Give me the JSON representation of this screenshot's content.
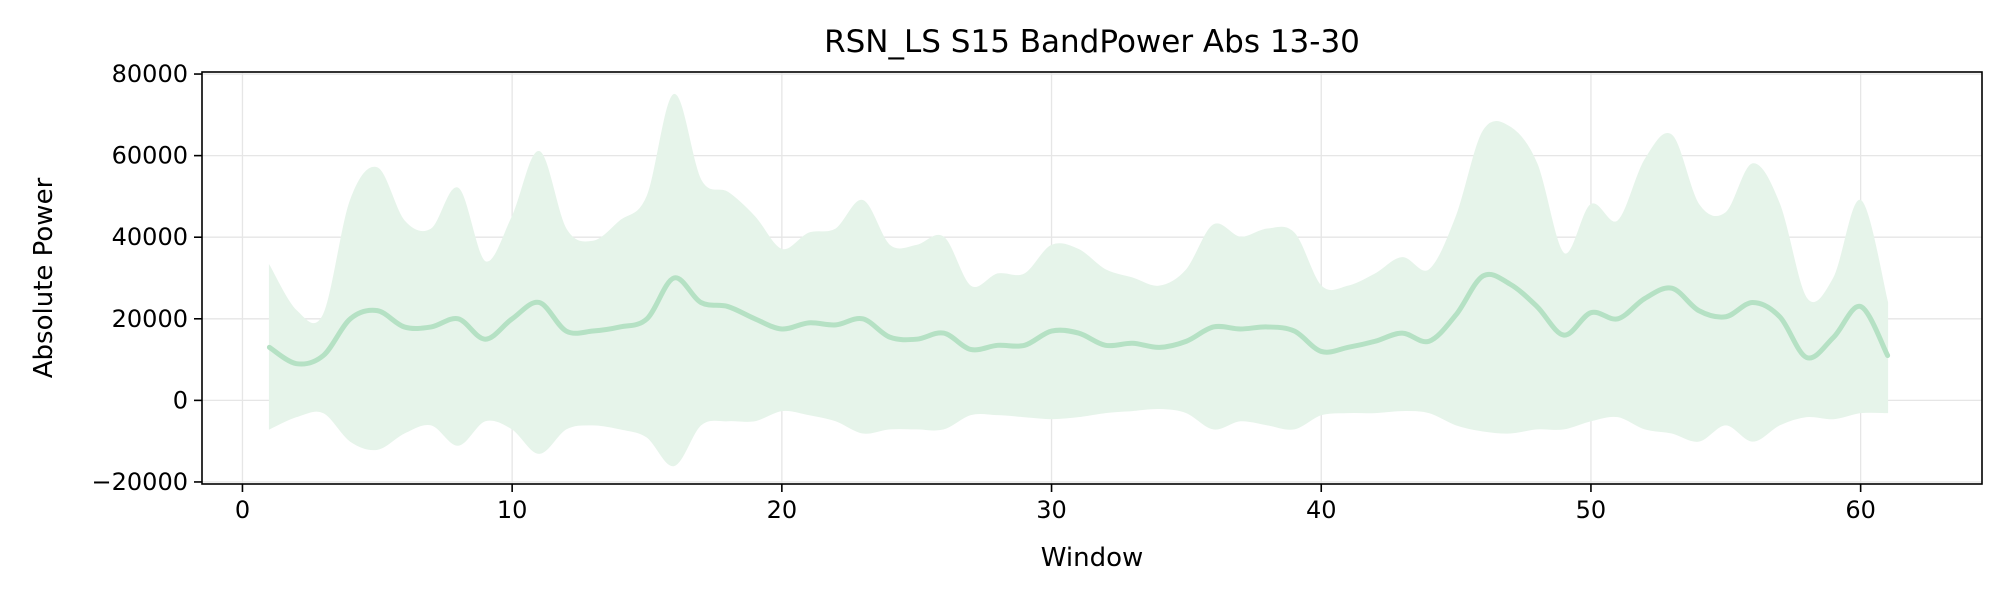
{
  "chart_data": {
    "type": "area",
    "title": "RSN_LS S15 BandPower Abs 13-30",
    "xlabel": "Window",
    "ylabel": "Absolute Power",
    "xlim": [
      -1.5,
      64.5
    ],
    "ylim": [
      -20500,
      80500
    ],
    "x_ticks": [
      0,
      10,
      20,
      30,
      40,
      50,
      60
    ],
    "y_ticks": [
      -20000,
      0,
      20000,
      40000,
      60000,
      80000
    ],
    "x_tick_labels": [
      "0",
      "10",
      "20",
      "30",
      "40",
      "50",
      "60"
    ],
    "y_tick_labels": [
      "−20000",
      "0",
      "20000",
      "40000",
      "60000",
      "80000"
    ],
    "grid": true,
    "legend": "none",
    "colors": {
      "line": "#b5e1c4",
      "band": "#e6f4ea",
      "grid": "#e6e6e6",
      "axes": "#000000"
    },
    "series": [
      {
        "x": [
          1,
          2,
          3,
          4,
          5,
          6,
          7,
          8,
          9,
          10,
          11,
          12,
          13,
          14,
          15,
          16,
          17,
          18,
          19,
          20,
          21,
          22,
          23,
          24,
          25,
          26,
          27,
          28,
          29,
          30,
          31,
          32,
          33,
          34,
          35,
          36,
          37,
          38,
          39,
          40,
          41,
          42,
          43,
          44,
          45,
          46,
          47,
          48,
          49,
          50,
          51,
          52,
          53,
          54,
          55,
          56,
          57,
          58,
          59,
          60,
          61
        ],
        "mean": [
          13000,
          9000,
          11000,
          20000,
          22000,
          18000,
          18000,
          20000,
          15000,
          20000,
          24000,
          17000,
          17000,
          18000,
          20000,
          30000,
          24000,
          23000,
          20000,
          17500,
          19000,
          18500,
          20000,
          15500,
          15000,
          16500,
          12500,
          13500,
          13500,
          17000,
          16500,
          13500,
          14000,
          13000,
          14500,
          18000,
          17500,
          18000,
          17000,
          12000,
          13000,
          14500,
          16500,
          14500,
          21000,
          30500,
          28500,
          23000,
          16000,
          21500,
          20000,
          25000,
          27500,
          22000,
          20500,
          24000,
          20500,
          10500,
          15500,
          23000,
          11000
        ],
        "upper": [
          33000,
          22000,
          21000,
          49000,
          57000,
          44000,
          42000,
          52000,
          34000,
          45000,
          61000,
          42000,
          39000,
          44000,
          50000,
          75000,
          54000,
          51000,
          45000,
          37000,
          41000,
          42000,
          49000,
          38000,
          38000,
          40000,
          28000,
          31000,
          31000,
          38000,
          37000,
          32000,
          30000,
          28000,
          32000,
          43000,
          40000,
          42000,
          41000,
          28000,
          28000,
          31000,
          35000,
          32000,
          45000,
          66000,
          67000,
          58000,
          36000,
          48000,
          44000,
          59000,
          65000,
          48000,
          46000,
          58000,
          48000,
          25000,
          30000,
          49000,
          24000
        ],
        "lower": [
          -7000,
          -4000,
          -3000,
          -10000,
          -12000,
          -8000,
          -6000,
          -11000,
          -5000,
          -7000,
          -13000,
          -7000,
          -6000,
          -7000,
          -9000,
          -16000,
          -6000,
          -5000,
          -5000,
          -2500,
          -3500,
          -5000,
          -8000,
          -7000,
          -7000,
          -7000,
          -3500,
          -3500,
          -4000,
          -4500,
          -4000,
          -3000,
          -2500,
          -2000,
          -3000,
          -7000,
          -5000,
          -6000,
          -7000,
          -3500,
          -3000,
          -3000,
          -2500,
          -3000,
          -6000,
          -7500,
          -8000,
          -7000,
          -7000,
          -5000,
          -4000,
          -7000,
          -8000,
          -10000,
          -6000,
          -10000,
          -6000,
          -4000,
          -4500,
          -3000,
          -3000
        ]
      }
    ]
  }
}
